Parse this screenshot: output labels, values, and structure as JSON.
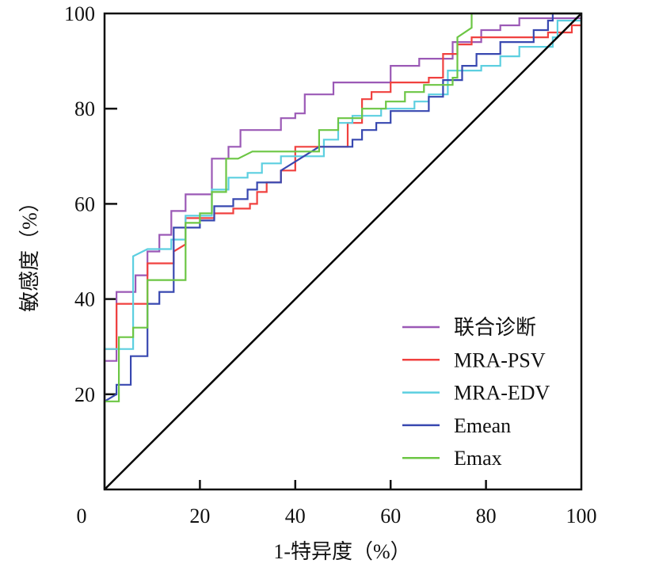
{
  "chart_data": {
    "type": "line",
    "title": "",
    "xlabel": "1-特异度（%）",
    "ylabel": "敏感度（%）",
    "xlim": [
      0,
      100
    ],
    "ylim": [
      0,
      100
    ],
    "x_ticks": [
      "0",
      "20",
      "40",
      "60",
      "80",
      "100"
    ],
    "y_ticks": [
      "20",
      "40",
      "60",
      "80",
      "100"
    ],
    "grid": false,
    "legend_position": "bottom-right",
    "reference_line": {
      "x": [
        0,
        100
      ],
      "y": [
        0,
        100
      ],
      "color": "#000000"
    },
    "series": [
      {
        "name": "联合诊断",
        "color": "#9b59b6",
        "points": [
          [
            0,
            0
          ],
          [
            0,
            27
          ],
          [
            2.5,
            27
          ],
          [
            2.5,
            41.5
          ],
          [
            6.5,
            41.5
          ],
          [
            6.5,
            45
          ],
          [
            9,
            45
          ],
          [
            9,
            50
          ],
          [
            11.5,
            50
          ],
          [
            11.5,
            53.5
          ],
          [
            14,
            53.5
          ],
          [
            14,
            58.5
          ],
          [
            17,
            58.5
          ],
          [
            17,
            62
          ],
          [
            22.5,
            62
          ],
          [
            22.5,
            69.5
          ],
          [
            26,
            69.5
          ],
          [
            26,
            72
          ],
          [
            28.5,
            72
          ],
          [
            28.5,
            75.5
          ],
          [
            37,
            75.5
          ],
          [
            37,
            78
          ],
          [
            40,
            78
          ],
          [
            40,
            79
          ],
          [
            42,
            79
          ],
          [
            42,
            83
          ],
          [
            48,
            83
          ],
          [
            48,
            85.5
          ],
          [
            60,
            85.5
          ],
          [
            60,
            89
          ],
          [
            66,
            89
          ],
          [
            66,
            90.5
          ],
          [
            73,
            90.5
          ],
          [
            73,
            94
          ],
          [
            79,
            94
          ],
          [
            79,
            96.5
          ],
          [
            83,
            96.5
          ],
          [
            83,
            97.5
          ],
          [
            87,
            97.5
          ],
          [
            87,
            99
          ],
          [
            100,
            99
          ],
          [
            100,
            100
          ]
        ]
      },
      {
        "name": "MRA-PSV",
        "color": "#f0413f",
        "points": [
          [
            0,
            0
          ],
          [
            0,
            29.5
          ],
          [
            2.5,
            29.5
          ],
          [
            2.5,
            39
          ],
          [
            9,
            39
          ],
          [
            9,
            47.5
          ],
          [
            14.5,
            47.5
          ],
          [
            14.5,
            50
          ],
          [
            17,
            51.5
          ],
          [
            17,
            57
          ],
          [
            23,
            57
          ],
          [
            23,
            58
          ],
          [
            27,
            58
          ],
          [
            27,
            59
          ],
          [
            30.5,
            59
          ],
          [
            30.5,
            60
          ],
          [
            32,
            60
          ],
          [
            32,
            62.5
          ],
          [
            34,
            62.5
          ],
          [
            34,
            64.5
          ],
          [
            37,
            64.5
          ],
          [
            37,
            67
          ],
          [
            40,
            67
          ],
          [
            40,
            72
          ],
          [
            51,
            72
          ],
          [
            51,
            77
          ],
          [
            54,
            77
          ],
          [
            54,
            82
          ],
          [
            56,
            82
          ],
          [
            56,
            83.5
          ],
          [
            60,
            83.5
          ],
          [
            60,
            85.5
          ],
          [
            68,
            85.5
          ],
          [
            68,
            86.5
          ],
          [
            71,
            86.5
          ],
          [
            71,
            91.5
          ],
          [
            74,
            91.5
          ],
          [
            74,
            93.5
          ],
          [
            77,
            93.5
          ],
          [
            77,
            95
          ],
          [
            93,
            95
          ],
          [
            93,
            96
          ],
          [
            98,
            96
          ],
          [
            98,
            97.5
          ],
          [
            100,
            97.5
          ]
        ]
      },
      {
        "name": "MRA-EDV",
        "color": "#5ccfe0",
        "points": [
          [
            0,
            0
          ],
          [
            0,
            18.5
          ],
          [
            0,
            29.5
          ],
          [
            2.5,
            29.5
          ],
          [
            6,
            29.5
          ],
          [
            6,
            49
          ],
          [
            9,
            50.5
          ],
          [
            14,
            50.5
          ],
          [
            14,
            52.5
          ],
          [
            17,
            52.5
          ],
          [
            17,
            57.5
          ],
          [
            22.5,
            57.5
          ],
          [
            22.5,
            63
          ],
          [
            26,
            63
          ],
          [
            26,
            65.5
          ],
          [
            30,
            65.5
          ],
          [
            30,
            66.5
          ],
          [
            33,
            66.5
          ],
          [
            33,
            68.5
          ],
          [
            37,
            68.5
          ],
          [
            37,
            70
          ],
          [
            46,
            70
          ],
          [
            46,
            73.5
          ],
          [
            49,
            73.5
          ],
          [
            49,
            77
          ],
          [
            52,
            77
          ],
          [
            52,
            78.5
          ],
          [
            58,
            78.5
          ],
          [
            58,
            80
          ],
          [
            65,
            80
          ],
          [
            65,
            81.5
          ],
          [
            68,
            81.5
          ],
          [
            68,
            83
          ],
          [
            72,
            83
          ],
          [
            72,
            88
          ],
          [
            79,
            88
          ],
          [
            79,
            89
          ],
          [
            83,
            89
          ],
          [
            83,
            91
          ],
          [
            87,
            91
          ],
          [
            87,
            93
          ],
          [
            94,
            93
          ],
          [
            94,
            95
          ],
          [
            95,
            95
          ],
          [
            95,
            98.5
          ],
          [
            100,
            98.5
          ],
          [
            100,
            100
          ]
        ]
      },
      {
        "name": "Emean",
        "color": "#3848b0",
        "points": [
          [
            0,
            0
          ],
          [
            0,
            18.5
          ],
          [
            2.5,
            20
          ],
          [
            2.5,
            22
          ],
          [
            5.5,
            22
          ],
          [
            5.5,
            28
          ],
          [
            9,
            28
          ],
          [
            9,
            39
          ],
          [
            11.5,
            39
          ],
          [
            11.5,
            41.5
          ],
          [
            14.5,
            41.5
          ],
          [
            14.5,
            55
          ],
          [
            20,
            55
          ],
          [
            20,
            56.5
          ],
          [
            23,
            56.5
          ],
          [
            23,
            59.5
          ],
          [
            27,
            59.5
          ],
          [
            27,
            61
          ],
          [
            30,
            61
          ],
          [
            30,
            63
          ],
          [
            32,
            63
          ],
          [
            32,
            64.5
          ],
          [
            37,
            64.5
          ],
          [
            37,
            67
          ],
          [
            41,
            69.5
          ],
          [
            45,
            72
          ],
          [
            52,
            72
          ],
          [
            52,
            73.5
          ],
          [
            54,
            73.5
          ],
          [
            54,
            75.5
          ],
          [
            57,
            75.5
          ],
          [
            57,
            77
          ],
          [
            60,
            77
          ],
          [
            60,
            79.5
          ],
          [
            68,
            79.5
          ],
          [
            68,
            82.5
          ],
          [
            71,
            82.5
          ],
          [
            71,
            86
          ],
          [
            75,
            86
          ],
          [
            75,
            89
          ],
          [
            78,
            89
          ],
          [
            78,
            91.5
          ],
          [
            83,
            91.5
          ],
          [
            83,
            94
          ],
          [
            90,
            94
          ],
          [
            90,
            96.5
          ],
          [
            93,
            96.5
          ],
          [
            93,
            98.5
          ],
          [
            94,
            98.5
          ],
          [
            94,
            100
          ],
          [
            100,
            100
          ]
        ]
      },
      {
        "name": "Emax",
        "color": "#6cc644",
        "points": [
          [
            0,
            0
          ],
          [
            0,
            18.5
          ],
          [
            3,
            18.5
          ],
          [
            3,
            32
          ],
          [
            6,
            32
          ],
          [
            6,
            34
          ],
          [
            9,
            34
          ],
          [
            9,
            44
          ],
          [
            17,
            44
          ],
          [
            17,
            56
          ],
          [
            20,
            56
          ],
          [
            20,
            58
          ],
          [
            22.5,
            58
          ],
          [
            22.5,
            62.5
          ],
          [
            25.5,
            62.5
          ],
          [
            25.5,
            69.5
          ],
          [
            28,
            69.5
          ],
          [
            31,
            71
          ],
          [
            45,
            71
          ],
          [
            45,
            75.5
          ],
          [
            49,
            75.5
          ],
          [
            49,
            78
          ],
          [
            54,
            78
          ],
          [
            54,
            80
          ],
          [
            59,
            80
          ],
          [
            59,
            81.5
          ],
          [
            63,
            81.5
          ],
          [
            63,
            83.5
          ],
          [
            67,
            83.5
          ],
          [
            67,
            85
          ],
          [
            73,
            85
          ],
          [
            73,
            86.5
          ],
          [
            74,
            86.5
          ],
          [
            74,
            95
          ],
          [
            77,
            97
          ],
          [
            77,
            100
          ],
          [
            100,
            100
          ]
        ]
      }
    ]
  }
}
